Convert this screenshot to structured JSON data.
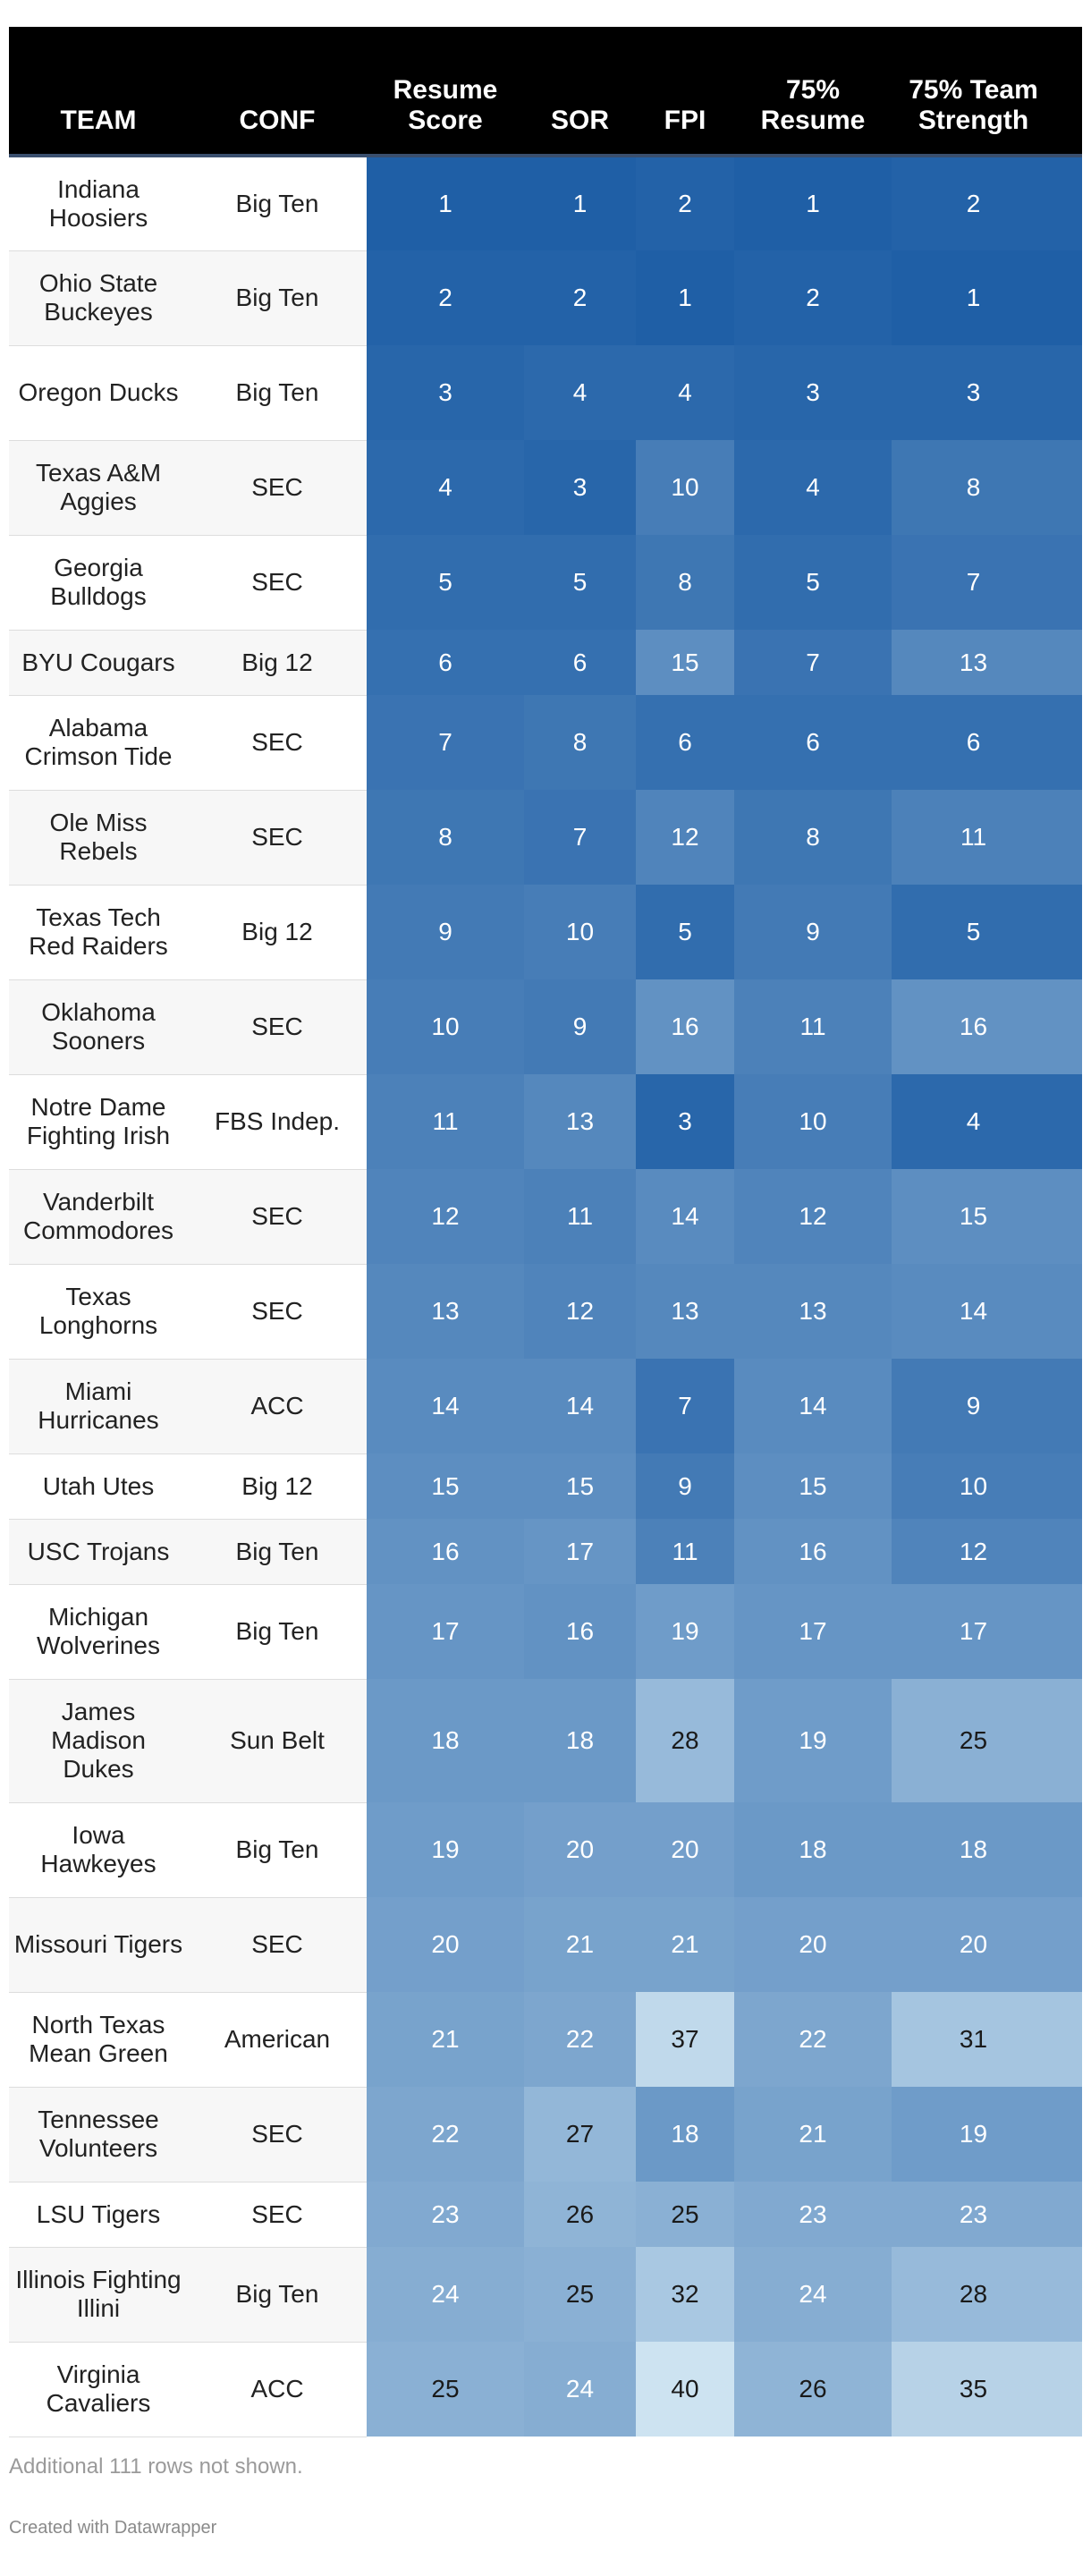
{
  "chart_data": {
    "type": "table",
    "columns": [
      "TEAM",
      "CONF",
      "Resume Score",
      "SOR",
      "FPI",
      "75% Resume",
      "75% Team Strength"
    ],
    "headers": {
      "team": "TEAM",
      "conf": "CONF",
      "resume_score": "Resume Score",
      "sor": "SOR",
      "fpi": "FPI",
      "resume75": "75% Resume",
      "team75": "75% Team Strength"
    },
    "color_scale": {
      "low": "#1f5fa6",
      "high": "#cde3f1",
      "range": [
        1,
        40
      ]
    },
    "rows": [
      {
        "team": "Indiana Hoosiers",
        "conf": "Big Ten",
        "values": [
          1,
          1,
          2,
          1,
          2
        ]
      },
      {
        "team": "Ohio State Buckeyes",
        "conf": "Big Ten",
        "values": [
          2,
          2,
          1,
          2,
          1
        ]
      },
      {
        "team": "Oregon Ducks",
        "conf": "Big Ten",
        "values": [
          3,
          4,
          4,
          3,
          3
        ]
      },
      {
        "team": "Texas A&M Aggies",
        "conf": "SEC",
        "values": [
          4,
          3,
          10,
          4,
          8
        ]
      },
      {
        "team": "Georgia Bulldogs",
        "conf": "SEC",
        "values": [
          5,
          5,
          8,
          5,
          7
        ]
      },
      {
        "team": "BYU Cougars",
        "conf": "Big 12",
        "values": [
          6,
          6,
          15,
          7,
          13
        ]
      },
      {
        "team": "Alabama Crimson Tide",
        "conf": "SEC",
        "values": [
          7,
          8,
          6,
          6,
          6
        ]
      },
      {
        "team": "Ole Miss Rebels",
        "conf": "SEC",
        "values": [
          8,
          7,
          12,
          8,
          11
        ]
      },
      {
        "team": "Texas Tech Red Raiders",
        "conf": "Big 12",
        "values": [
          9,
          10,
          5,
          9,
          5
        ]
      },
      {
        "team": "Oklahoma Sooners",
        "conf": "SEC",
        "values": [
          10,
          9,
          16,
          11,
          16
        ]
      },
      {
        "team": "Notre Dame Fighting Irish",
        "conf": "FBS Indep.",
        "values": [
          11,
          13,
          3,
          10,
          4
        ]
      },
      {
        "team": "Vanderbilt Commodores",
        "conf": "SEC",
        "values": [
          12,
          11,
          14,
          12,
          15
        ]
      },
      {
        "team": "Texas Longhorns",
        "conf": "SEC",
        "values": [
          13,
          12,
          13,
          13,
          14
        ]
      },
      {
        "team": "Miami Hurricanes",
        "conf": "ACC",
        "values": [
          14,
          14,
          7,
          14,
          9
        ]
      },
      {
        "team": "Utah Utes",
        "conf": "Big 12",
        "values": [
          15,
          15,
          9,
          15,
          10
        ]
      },
      {
        "team": "USC Trojans",
        "conf": "Big Ten",
        "values": [
          16,
          17,
          11,
          16,
          12
        ]
      },
      {
        "team": "Michigan Wolverines",
        "conf": "Big Ten",
        "values": [
          17,
          16,
          19,
          17,
          17
        ]
      },
      {
        "team": "James Madison Dukes",
        "conf": "Sun Belt",
        "values": [
          18,
          18,
          28,
          19,
          25
        ]
      },
      {
        "team": "Iowa Hawkeyes",
        "conf": "Big Ten",
        "values": [
          19,
          20,
          20,
          18,
          18
        ]
      },
      {
        "team": "Missouri Tigers",
        "conf": "SEC",
        "values": [
          20,
          21,
          21,
          20,
          20
        ]
      },
      {
        "team": "North Texas Mean Green",
        "conf": "American",
        "values": [
          21,
          22,
          37,
          22,
          31
        ]
      },
      {
        "team": "Tennessee Volunteers",
        "conf": "SEC",
        "values": [
          22,
          27,
          18,
          21,
          19
        ]
      },
      {
        "team": "LSU Tigers",
        "conf": "SEC",
        "values": [
          23,
          26,
          25,
          23,
          23
        ]
      },
      {
        "team": "Illinois Fighting Illini",
        "conf": "Big Ten",
        "values": [
          24,
          25,
          32,
          24,
          28
        ]
      },
      {
        "team": "Virginia Cavaliers",
        "conf": "ACC",
        "values": [
          25,
          24,
          40,
          26,
          35
        ]
      }
    ]
  },
  "footer": {
    "note": "Additional 111 rows not shown.",
    "credit": "Created with Datawrapper"
  }
}
